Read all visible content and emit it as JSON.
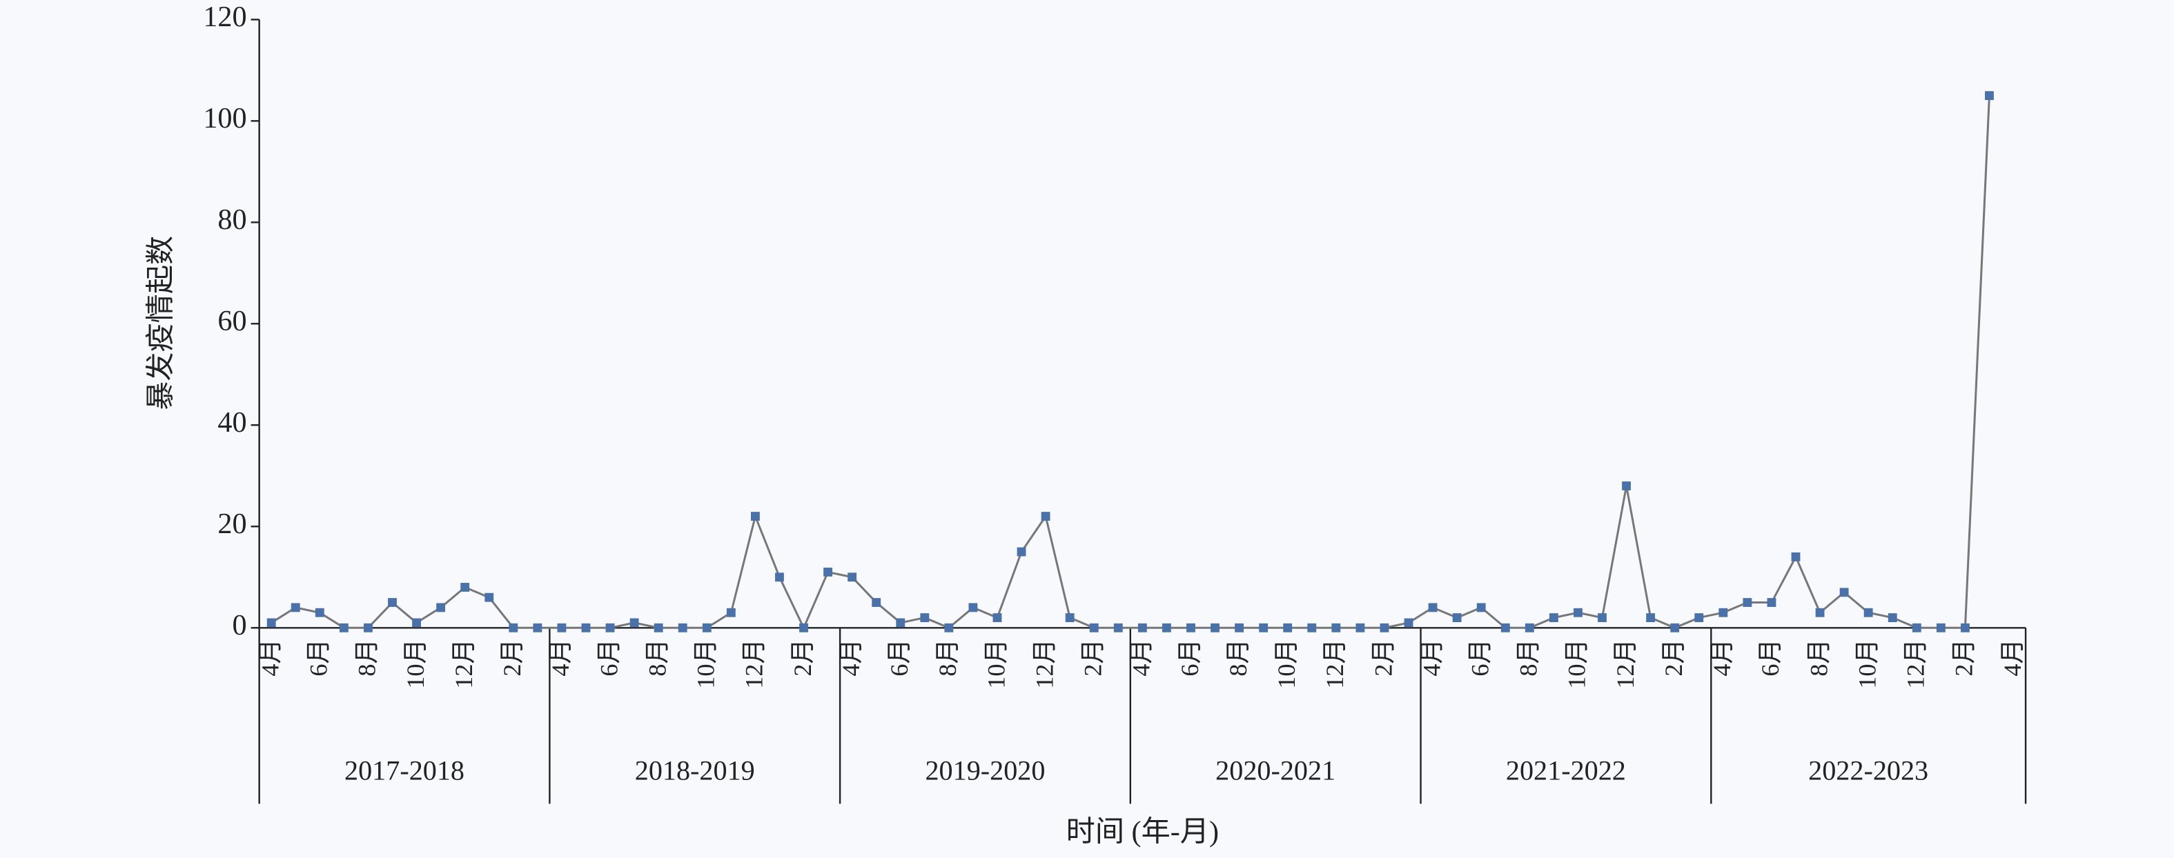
{
  "chart_data": {
    "type": "line",
    "y_label": "暴发疫情起数",
    "x_label": "时间 (年-月)",
    "categories": [
      "4月",
      null,
      "6月",
      null,
      "8月",
      null,
      "10月",
      null,
      "12月",
      null,
      "2月",
      null,
      "4月",
      null,
      "6月",
      null,
      "8月",
      null,
      "10月",
      null,
      "12月",
      null,
      "2月",
      null,
      "4月",
      null,
      "6月",
      null,
      "8月",
      null,
      "10月",
      null,
      "12月",
      null,
      "2月",
      null,
      "4月",
      null,
      "6月",
      null,
      "8月",
      null,
      "10月",
      null,
      "12月",
      null,
      "2月",
      null,
      "4月",
      null,
      "6月",
      null,
      "8月",
      null,
      "10月",
      null,
      "12月",
      null,
      "2月",
      null,
      "4月",
      null,
      "6月",
      null,
      "8月",
      null,
      "10月",
      null,
      "12月",
      null,
      "2月",
      null,
      "4月"
    ],
    "groups": [
      "2017-2018",
      "2018-2019",
      "2019-2020",
      "2020-2021",
      "2021-2022",
      "2022-2023"
    ],
    "series": [
      {
        "line_color": "#777777",
        "color": "#4a72a8",
        "values": [
          1,
          4,
          3,
          0,
          0,
          5,
          1,
          4,
          8,
          6,
          0,
          0,
          0,
          0,
          0,
          1,
          0,
          0,
          0,
          3,
          22,
          10,
          0,
          11,
          10,
          5,
          1,
          2,
          0,
          4,
          2,
          15,
          22,
          2,
          0,
          0,
          0,
          0,
          0,
          0,
          0,
          0,
          0,
          0,
          0,
          0,
          0,
          1,
          4,
          2,
          4,
          0,
          0,
          2,
          3,
          2,
          28,
          2,
          0,
          2,
          3,
          5,
          5,
          14,
          3,
          7,
          3,
          2,
          0,
          0,
          0,
          105,
          null
        ]
      }
    ],
    "ylim": [
      0,
      120
    ],
    "yticks": [
      0,
      20,
      40,
      60,
      80,
      100,
      120
    ]
  }
}
